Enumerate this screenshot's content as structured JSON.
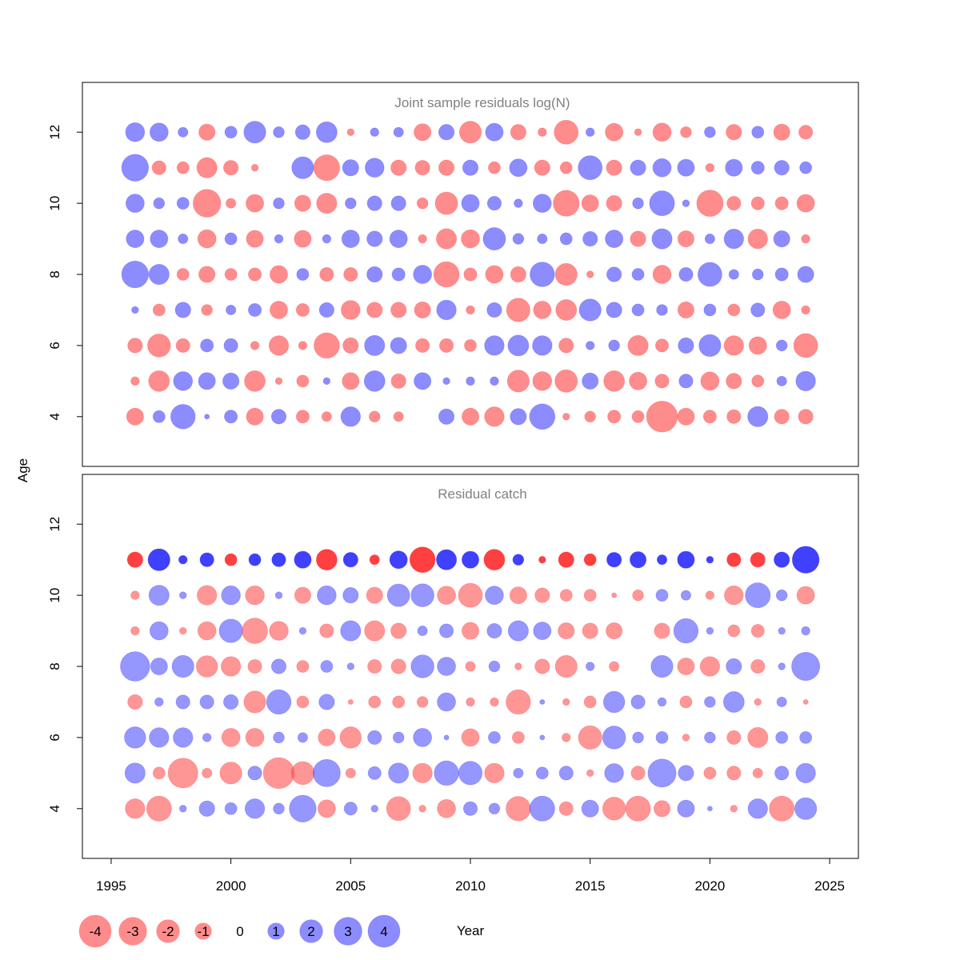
{
  "chart_data": {
    "type": "bubble",
    "xlabel": "Year",
    "ylabel": "Age",
    "xlim": [
      1993.8,
      2026.2
    ],
    "x_ticks": [
      1995,
      2000,
      2005,
      2010,
      2015,
      2020,
      2025
    ],
    "y_ticks": [
      4,
      6,
      8,
      10,
      12
    ],
    "years": [
      1996,
      1997,
      1998,
      1999,
      2000,
      2001,
      2002,
      2003,
      2004,
      2005,
      2006,
      2007,
      2008,
      2009,
      2010,
      2011,
      2012,
      2013,
      2014,
      2015,
      2016,
      2017,
      2018,
      2019,
      2020,
      2021,
      2022,
      2023,
      2024
    ],
    "colors": {
      "positive": "#4040FF",
      "negative": "#FF4040",
      "catch_positive": "#0000FF",
      "catch_negative": "#FF0000"
    },
    "legend": [
      {
        "label": "-4",
        "value": -4
      },
      {
        "label": "-3",
        "value": -3
      },
      {
        "label": "-2",
        "value": -2
      },
      {
        "label": "-1",
        "value": -1
      },
      {
        "label": "0",
        "value": 0
      },
      {
        "label": "1",
        "value": 1
      },
      {
        "label": "2",
        "value": 2
      },
      {
        "label": "3",
        "value": 3
      },
      {
        "label": "4",
        "value": 4
      }
    ],
    "panels": [
      {
        "title": "Joint sample residuals log(N)",
        "ylim": [
          2.6,
          13.4
        ],
        "opacity": 0.6,
        "ages": [
          12,
          11,
          10,
          9,
          8,
          7,
          6,
          5,
          4
        ],
        "residuals": [
          [
            1.5,
            1.4,
            0.4,
            -1.1,
            0.6,
            2.0,
            0.5,
            0.9,
            1.8,
            -0.2,
            0.3,
            0.4,
            -1.2,
            1.0,
            -2.0,
            1.3,
            -1.0,
            -0.3,
            -2.4,
            0.3,
            -1.3,
            -0.2,
            -1.4,
            -0.5,
            0.5,
            -1.0,
            0.6,
            -1.1,
            -0.8
          ],
          [
            3.0,
            -0.8,
            -0.6,
            -1.7,
            -0.9,
            -0.2,
            0.0,
            2.0,
            -2.8,
            1.1,
            1.5,
            -1.0,
            -0.9,
            -1.0,
            1.0,
            -0.6,
            1.3,
            -1.0,
            -0.6,
            2.4,
            -1.0,
            1.0,
            1.4,
            1.2,
            -0.3,
            1.2,
            0.7,
            0.9,
            0.6
          ],
          [
            1.4,
            0.5,
            0.6,
            -3.2,
            -0.4,
            -1.3,
            0.5,
            -1.1,
            -1.7,
            0.5,
            0.9,
            0.9,
            -0.5,
            -2.1,
            1.3,
            0.8,
            0.3,
            1.4,
            -2.8,
            -1.2,
            -1.0,
            0.5,
            2.6,
            0.2,
            -2.9,
            -0.8,
            -0.7,
            -0.7,
            -1.3
          ],
          [
            1.3,
            1.3,
            0.4,
            -1.4,
            0.6,
            -1.2,
            0.3,
            -1.2,
            0.3,
            1.3,
            1.0,
            1.3,
            -0.3,
            -1.7,
            -1.4,
            2.1,
            0.5,
            0.4,
            0.6,
            0.9,
            1.3,
            -1.0,
            1.7,
            -1.1,
            0.4,
            1.6,
            -1.6,
            1.1,
            -0.3
          ],
          [
            3.0,
            1.7,
            -0.6,
            -1.1,
            -0.6,
            -0.7,
            -1.3,
            0.6,
            -0.8,
            -0.8,
            1.0,
            0.7,
            1.4,
            -2.7,
            -0.7,
            -1.3,
            -1.0,
            2.5,
            -2.0,
            -0.2,
            0.9,
            0.6,
            -1.4,
            0.8,
            2.4,
            0.4,
            0.5,
            0.7,
            1.1
          ],
          [
            0.2,
            -0.6,
            1.0,
            -0.5,
            0.4,
            0.7,
            -1.3,
            -0.7,
            0.9,
            -1.5,
            -1.0,
            -1.0,
            -1.1,
            1.6,
            -0.3,
            0.9,
            -2.3,
            -1.3,
            -1.8,
            2.0,
            1.0,
            0.6,
            0.5,
            -1.1,
            0.6,
            -0.6,
            0.8,
            -1.3,
            -0.3
          ],
          [
            -0.9,
            -2.2,
            -0.8,
            0.7,
            0.8,
            -0.3,
            -1.6,
            -0.3,
            -2.7,
            -1.0,
            1.7,
            1.1,
            -0.8,
            -0.8,
            -0.6,
            1.6,
            1.8,
            1.6,
            -0.9,
            0.3,
            0.5,
            -1.7,
            -0.7,
            1.0,
            2.0,
            -1.6,
            -1.3,
            0.5,
            -2.4
          ],
          [
            -0.3,
            -1.8,
            1.5,
            1.2,
            1.1,
            -1.8,
            -0.2,
            -0.6,
            0.2,
            -1.2,
            1.8,
            -0.9,
            1.2,
            0.2,
            0.3,
            0.3,
            -2.0,
            -1.5,
            -2.1,
            1.1,
            -1.8,
            -1.3,
            -0.8,
            0.8,
            -1.4,
            -1.0,
            -0.6,
            0.4,
            1.6
          ],
          [
            -1.2,
            0.6,
            2.5,
            0.1,
            0.7,
            -1.2,
            0.9,
            -0.7,
            -0.4,
            1.6,
            -0.5,
            -0.4,
            0.0,
            1.0,
            -1.2,
            -1.6,
            1.1,
            2.7,
            -0.2,
            -0.5,
            -0.7,
            -0.6,
            -4.0,
            -1.2,
            -0.7,
            -0.8,
            1.7,
            -0.9,
            -0.9
          ]
        ]
      },
      {
        "title": "Residual catch",
        "ylim": [
          2.6,
          13.4
        ],
        "opacity": 0.55,
        "ages": [
          11,
          10,
          9,
          8,
          7,
          6,
          5,
          4
        ],
        "residuals": [
          [
            -1.0,
            2.0,
            0.3,
            0.8,
            -0.6,
            0.6,
            0.8,
            1.2,
            -1.8,
            0.9,
            -0.4,
            1.3,
            -2.7,
            1.7,
            1.2,
            -1.8,
            0.5,
            -0.2,
            -1.0,
            -0.6,
            0.9,
            1.1,
            0.4,
            1.2,
            0.2,
            -0.8,
            -0.9,
            1.0,
            3.0
          ],
          [
            -0.3,
            1.7,
            0.2,
            -1.6,
            1.5,
            -1.5,
            0.2,
            -1.1,
            1.5,
            1.0,
            -1.1,
            2.1,
            2.2,
            -1.4,
            -2.4,
            1.4,
            -1.2,
            -0.9,
            -0.6,
            -0.6,
            -0.1,
            -0.5,
            0.6,
            0.4,
            -0.3,
            -1.5,
            2.6,
            0.5,
            -1.3
          ],
          [
            -0.3,
            1.4,
            -0.2,
            -1.4,
            2.3,
            -2.7,
            -1.5,
            0.2,
            -0.8,
            1.7,
            -1.7,
            -1.0,
            0.4,
            0.8,
            -1.2,
            0.9,
            1.7,
            1.3,
            -1.1,
            -1.0,
            -1.1,
            0.0,
            -1.0,
            2.5,
            0.2,
            -0.6,
            -0.7,
            0.2,
            0.3
          ],
          [
            3.6,
            1.2,
            2.0,
            -1.9,
            -1.6,
            -0.8,
            0.9,
            -0.6,
            0.6,
            0.2,
            -0.8,
            -0.9,
            2.2,
            1.4,
            -0.4,
            0.5,
            -0.2,
            -0.9,
            -2.0,
            0.3,
            -0.4,
            0.0,
            2.0,
            -1.2,
            -1.6,
            1.0,
            -0.8,
            0.2,
            3.3
          ],
          [
            -0.9,
            0.3,
            0.8,
            0.8,
            0.9,
            -2.0,
            2.5,
            -0.6,
            1.0,
            -0.1,
            -0.6,
            -0.6,
            -0.5,
            1.4,
            -0.3,
            -0.3,
            -2.5,
            0.1,
            -0.2,
            -0.6,
            1.9,
            0.8,
            0.3,
            -0.6,
            0.5,
            1.8,
            -0.2,
            0.4,
            -0.1
          ],
          [
            1.9,
            1.6,
            1.6,
            0.3,
            -1.4,
            -1.4,
            0.5,
            0.4,
            -1.2,
            -1.9,
            0.8,
            0.5,
            1.4,
            0.1,
            -1.3,
            0.6,
            -0.6,
            0.1,
            -0.3,
            -2.3,
            2.2,
            0.5,
            0.6,
            -0.2,
            0.5,
            -0.8,
            -1.7,
            0.6,
            0.6
          ],
          [
            1.7,
            -0.6,
            -3.7,
            -0.4,
            -2.0,
            0.8,
            -4.0,
            -2.2,
            3.1,
            -0.4,
            0.7,
            1.7,
            -1.6,
            2.5,
            2.3,
            -1.6,
            0.4,
            0.6,
            0.8,
            -0.2,
            1.5,
            -0.8,
            3.3,
            1.0,
            -0.6,
            -0.8,
            -0.4,
            0.8,
            1.6
          ],
          [
            -1.6,
            -2.6,
            0.2,
            1.0,
            0.6,
            1.6,
            0.5,
            3.0,
            -1.3,
            0.7,
            0.2,
            -2.4,
            -0.2,
            -1.4,
            0.8,
            0.5,
            -2.5,
            2.6,
            -0.8,
            1.2,
            -2.2,
            -2.6,
            -1.1,
            1.2,
            0.1,
            -0.2,
            1.6,
            -2.6,
            2.0
          ]
        ]
      }
    ]
  }
}
